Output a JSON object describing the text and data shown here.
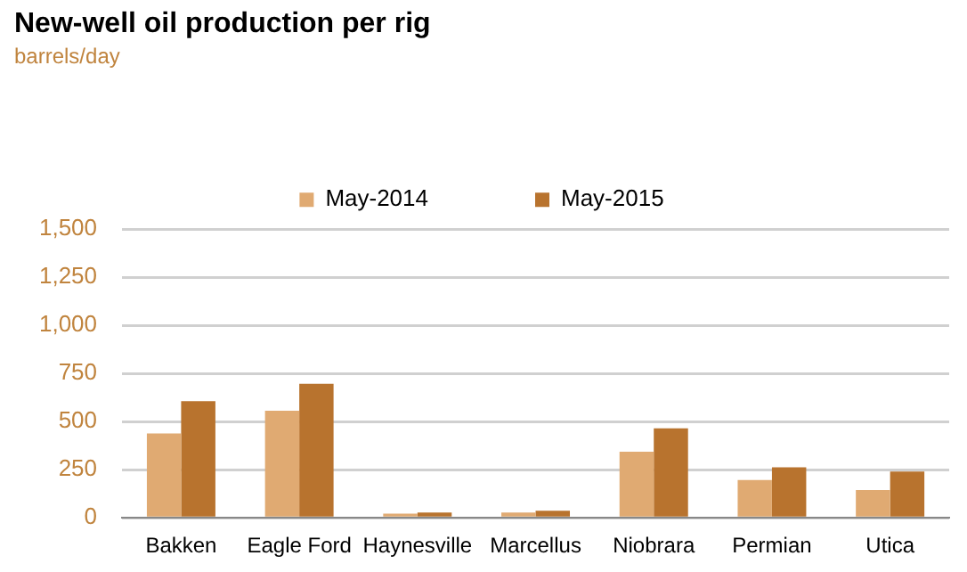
{
  "chart_data": {
    "type": "bar",
    "title": "New-well oil production per rig",
    "subtitle": "barrels/day",
    "categories": [
      "Bakken",
      "Eagle Ford",
      "Haynesville",
      "Marcellus",
      "Niobrara",
      "Permian",
      "Utica"
    ],
    "series": [
      {
        "name": "May-2014",
        "color": "#e0aa72",
        "values": [
          438,
          557,
          22,
          27,
          344,
          196,
          144
        ]
      },
      {
        "name": "May-2015",
        "color": "#b8732e",
        "values": [
          606,
          696,
          27,
          37,
          465,
          262,
          240
        ]
      }
    ],
    "ylim": [
      0,
      1500
    ],
    "yticks": [
      {
        "value": 0,
        "label": "0"
      },
      {
        "value": 250,
        "label": "250"
      },
      {
        "value": 500,
        "label": "500"
      },
      {
        "value": 750,
        "label": "750"
      },
      {
        "value": 1000,
        "label": "1,000"
      },
      {
        "value": 1250,
        "label": "1,250"
      },
      {
        "value": 1500,
        "label": "1,500"
      }
    ],
    "grid": "y",
    "legend": "top"
  }
}
